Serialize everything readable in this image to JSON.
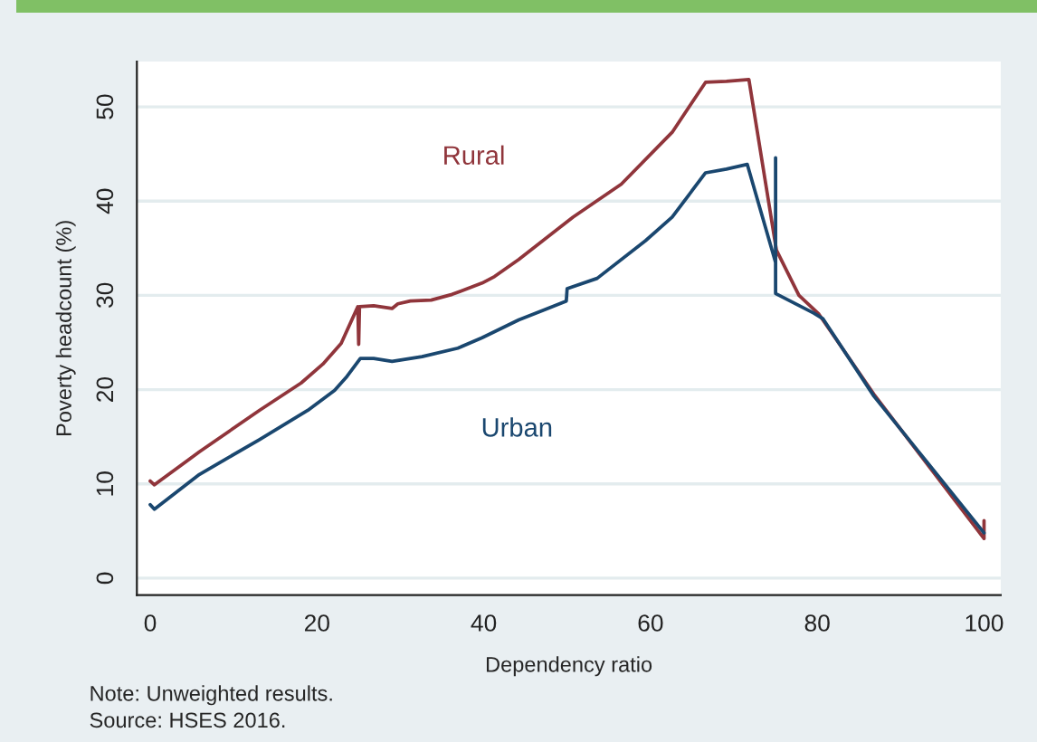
{
  "chart_data": {
    "type": "line",
    "xlabel": "Dependency ratio",
    "ylabel": "Poverty headcount (%)",
    "series": [
      {
        "name": "Rural",
        "color": "#90353b",
        "x": [
          0,
          0.5,
          5.9,
          13.1,
          18.1,
          20.7,
          22.9,
          24.9,
          25.0,
          25.1,
          26.8,
          29.0,
          29.7,
          31.2,
          33.7,
          36.2,
          39.8,
          41.3,
          44.2,
          50.7,
          56.5,
          62.6,
          66.6,
          69.1,
          71.8,
          75.1,
          77.8,
          80.2,
          86.8,
          100,
          100
        ],
        "values": [
          10.3,
          9.9,
          13.4,
          17.8,
          20.7,
          22.7,
          24.9,
          28.8,
          24.8,
          28.8,
          28.9,
          28.6,
          29.1,
          29.4,
          29.5,
          30.1,
          31.3,
          32.0,
          33.8,
          38.3,
          41.8,
          47.3,
          52.6,
          52.7,
          52.9,
          34.8,
          30.0,
          28.0,
          19.5,
          4.2,
          6.1
        ]
      },
      {
        "name": "Urban",
        "color": "#1a476f",
        "x": [
          0,
          0.5,
          5.9,
          13.1,
          18.9,
          22.1,
          23.6,
          25.2,
          26.8,
          29.0,
          32.6,
          36.9,
          39.8,
          44.2,
          47.1,
          49.9,
          50.0,
          53.6,
          59.4,
          62.6,
          66.6,
          69.1,
          71.6,
          75.0,
          75.0,
          75.0,
          79.6,
          80.7,
          86.8,
          100
        ],
        "values": [
          7.8,
          7.3,
          11.0,
          14.7,
          17.8,
          19.9,
          21.4,
          23.3,
          23.3,
          23.0,
          23.5,
          24.4,
          25.5,
          27.4,
          28.4,
          29.4,
          30.7,
          31.8,
          35.8,
          38.3,
          43.0,
          43.4,
          43.9,
          33.5,
          44.6,
          30.2,
          28.1,
          27.5,
          19.3,
          4.8
        ]
      }
    ],
    "xlim": [
      -1.6,
      102
    ],
    "ylim": [
      -1.8,
      54.8
    ],
    "xticks": [
      0,
      20,
      40,
      60,
      80,
      100
    ],
    "yticks": [
      0,
      10,
      20,
      30,
      40,
      50
    ],
    "grid": "y",
    "line_style": "solid",
    "annotations": [
      "Note: Unweighted results.",
      "Source: HSES 2016."
    ]
  }
}
